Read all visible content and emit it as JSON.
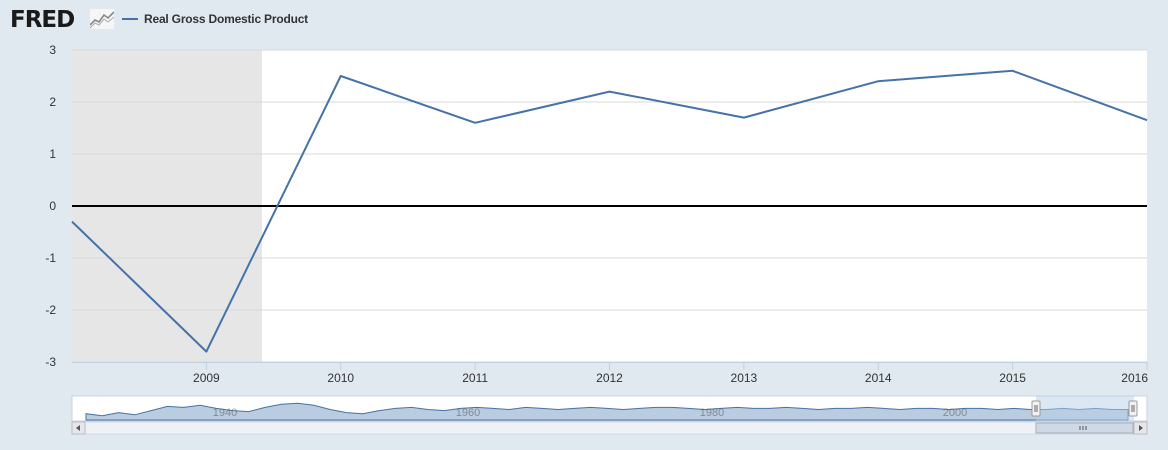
{
  "header": {
    "logo_text": "FRED",
    "logo_icon": "line-graph-icon"
  },
  "colors": {
    "series": "#4572a7",
    "recession_band": "#e6e6e6",
    "background": "#e1e9f0",
    "plot_background": "#ffffff"
  },
  "chart_data": {
    "type": "line",
    "series": [
      {
        "name": "Real Gross Domestic Product",
        "x": [
          "2008-01-01",
          "2009-01-01",
          "2010-01-01",
          "2011-01-01",
          "2012-01-01",
          "2013-01-01",
          "2014-01-01",
          "2015-01-01",
          "2016-01-01"
        ],
        "values": [
          -0.3,
          -2.8,
          2.5,
          1.6,
          2.2,
          1.7,
          2.4,
          2.6,
          1.65
        ]
      }
    ],
    "xlim": [
      "2008-01-01",
      "2016-01-01"
    ],
    "x_ticks": [
      "2009",
      "2010",
      "2011",
      "2012",
      "2013",
      "2014",
      "2015",
      "2016"
    ],
    "ylim": [
      -3,
      3
    ],
    "y_ticks": [
      "3",
      "2",
      "1",
      "0",
      "-1",
      "-2",
      "-3"
    ],
    "recession_shading": [
      [
        "2008-01-01",
        "2009-06-01"
      ]
    ],
    "zero_line": true,
    "grid": true,
    "legend_position": "top-left",
    "navigator": {
      "labels": [
        "1940",
        "1960",
        "1980",
        "2000"
      ]
    }
  }
}
